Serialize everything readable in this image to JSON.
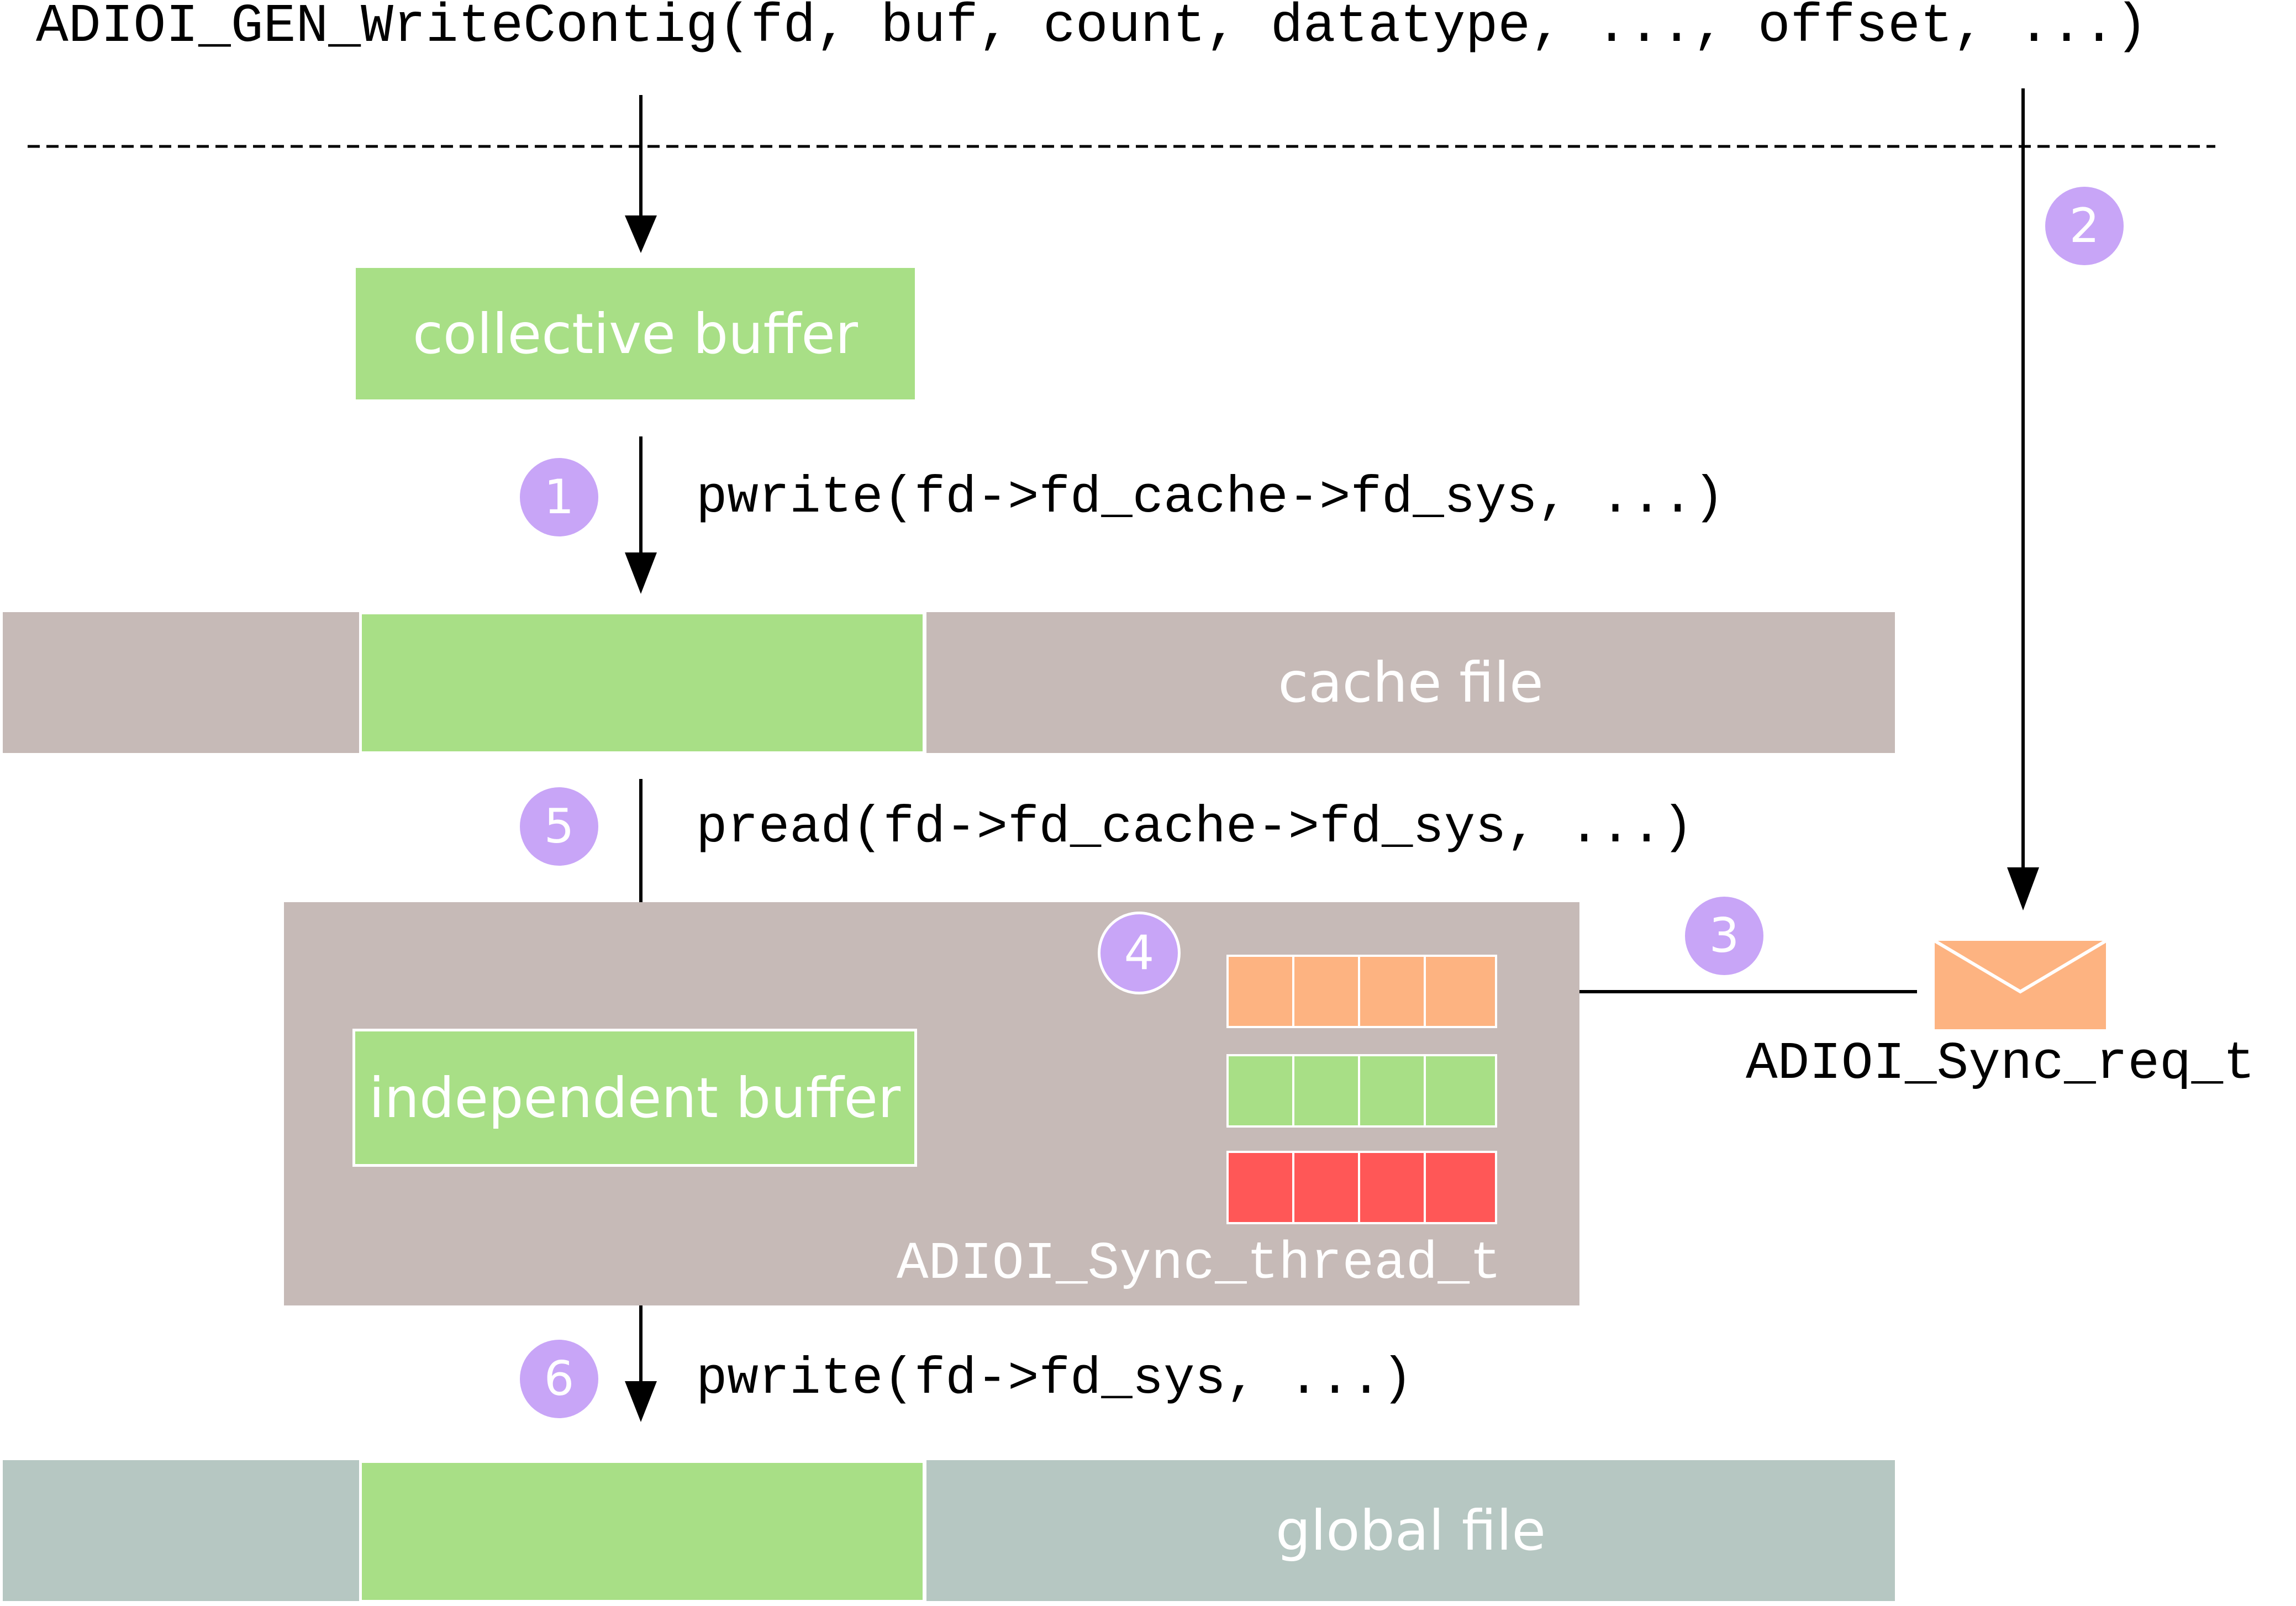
{
  "header": {
    "call": "ADIOI_GEN_WriteContig(fd, buf, count, datatype, ..., offset, ...)"
  },
  "steps": {
    "step1": {
      "number": "1",
      "call": "pwrite(fd->fd_cache->fd_sys, ...)"
    },
    "step2": {
      "number": "2"
    },
    "step3": {
      "number": "3"
    },
    "step4": {
      "number": "4"
    },
    "step5": {
      "number": "5",
      "call": "pread(fd->fd_cache->fd_sys, ...)"
    },
    "step6": {
      "number": "6",
      "call": "pwrite(fd->fd_sys, ...)"
    }
  },
  "buffers": {
    "collective": "collective buffer",
    "independent": "independent buffer"
  },
  "files": {
    "cache": "cache file",
    "global": "global file"
  },
  "sync": {
    "request": "ADIOI_Sync_req_t",
    "thread": "ADIOI_Sync_thread_t"
  },
  "icons": [
    "envelope-icon",
    "gears-icon"
  ],
  "colors": {
    "green": "#a8df86",
    "cache_file": "#c6bab7",
    "global_file": "#b6c7c2",
    "thread_panel": "#c6bab7",
    "badge": "#c8a5f7",
    "queue_orange": "#fdb381",
    "queue_green": "#a8df86",
    "queue_red": "#ff5757",
    "envelope": "#fdb381",
    "gear": "#6b6b6b"
  }
}
